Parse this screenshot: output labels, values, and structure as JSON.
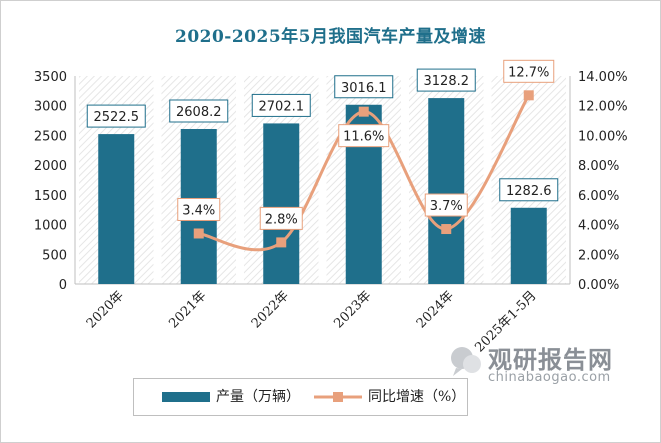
{
  "chart_data": {
    "type": "bar",
    "title": "2020-2025年5月我国汽车产量及增速",
    "categories": [
      "2020年",
      "2021年",
      "2022年",
      "2023年",
      "2024年",
      "2025年1-5月"
    ],
    "series": [
      {
        "name": "产量（万辆）",
        "type": "bar",
        "axis": "left",
        "values": [
          2522.5,
          2608.2,
          2702.1,
          3016.1,
          3128.2,
          1282.6
        ],
        "labels": [
          "2522.5",
          "2608.2",
          "2702.1",
          "3016.1",
          "3128.2",
          "1282.6"
        ],
        "color": "#1f6f8b"
      },
      {
        "name": "同比增速（%）",
        "type": "line",
        "axis": "right",
        "values": [
          null,
          3.4,
          2.8,
          11.6,
          3.7,
          12.7
        ],
        "labels": [
          "",
          "3.4%",
          "2.8%",
          "11.6%",
          "3.7%",
          "12.7%"
        ],
        "color": "#e8a07c"
      }
    ],
    "ylim": [
      0,
      3500
    ],
    "yticks": [
      0,
      500,
      1000,
      1500,
      2000,
      2500,
      3000,
      3500
    ],
    "ytick_labels": [
      "0",
      "500",
      "1000",
      "1500",
      "2000",
      "2500",
      "3000",
      "3500"
    ],
    "y2lim": [
      0,
      14
    ],
    "y2ticks": [
      0,
      2,
      4,
      6,
      8,
      10,
      12,
      14
    ],
    "y2tick_labels": [
      "0.00%",
      "2.00%",
      "4.00%",
      "6.00%",
      "8.00%",
      "10.00%",
      "12.00%",
      "14.00%"
    ],
    "grid": false,
    "legend": "bottom"
  },
  "watermark": {
    "cn": "观研报告网",
    "en": "chinabaogao.com",
    "icon": "bubble-logo-icon"
  }
}
